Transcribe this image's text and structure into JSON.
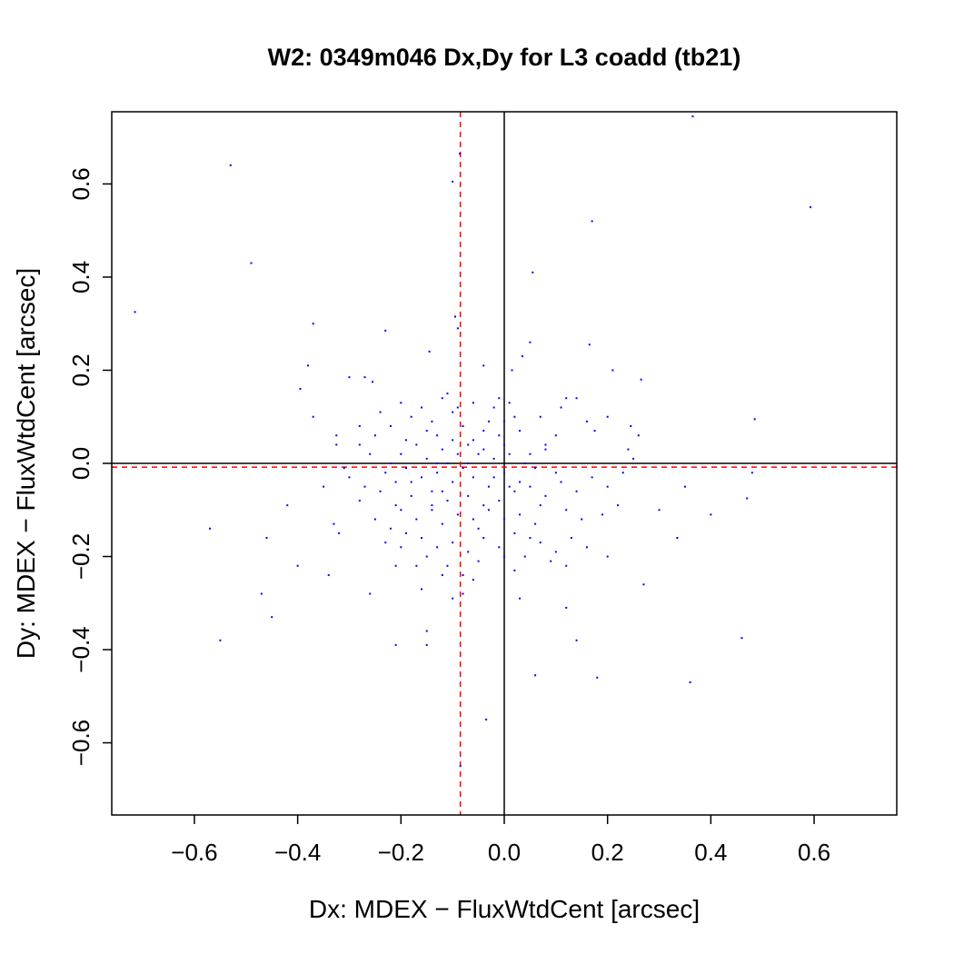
{
  "chart_data": {
    "type": "scatter",
    "title": "W2: 0349m046 Dx,Dy for L3 coadd (tb21)",
    "xlabel": "Dx: MDEX − FluxWtdCent [arcsec]",
    "ylabel": "Dy: MDEX − FluxWtdCent [arcsec]",
    "xlim": [
      -0.76,
      0.76
    ],
    "ylim": [
      -0.755,
      0.755
    ],
    "xticks": [
      -0.6,
      -0.4,
      -0.2,
      0.0,
      0.2,
      0.4,
      0.6
    ],
    "xtick_labels": [
      "−0.6",
      "−0.4",
      "−0.2",
      "0.0",
      "0.2",
      "0.4",
      "0.6"
    ],
    "yticks": [
      -0.6,
      -0.4,
      -0.2,
      0.0,
      0.2,
      0.4,
      0.6
    ],
    "ytick_labels": [
      "−0.6",
      "−0.4",
      "−0.2",
      "0.0",
      "0.2",
      "0.4",
      "0.6"
    ],
    "grid": false,
    "point_color": "#0000ff",
    "zero_line_color": "#000000",
    "median_line_color": "#ff0000",
    "median_x": -0.085,
    "median_y": -0.008,
    "points": [
      [
        0.365,
        0.745
      ],
      [
        -0.53,
        0.64
      ],
      [
        0.593,
        0.55
      ],
      [
        -0.1,
        0.605
      ],
      [
        -0.086,
        0.665
      ],
      [
        0.17,
        0.52
      ],
      [
        -0.49,
        0.43
      ],
      [
        0.055,
        0.41
      ],
      [
        -0.715,
        0.325
      ],
      [
        -0.095,
        0.315
      ],
      [
        -0.37,
        0.3
      ],
      [
        -0.09,
        0.29
      ],
      [
        -0.23,
        0.285
      ],
      [
        0.05,
        0.26
      ],
      [
        0.165,
        0.255
      ],
      [
        -0.145,
        0.24
      ],
      [
        0.035,
        0.23
      ],
      [
        -0.38,
        0.21
      ],
      [
        -0.04,
        0.21
      ],
      [
        0.21,
        0.2
      ],
      [
        0.015,
        0.2
      ],
      [
        -0.3,
        0.185
      ],
      [
        -0.27,
        0.185
      ],
      [
        0.265,
        0.18
      ],
      [
        -0.255,
        0.175
      ],
      [
        -0.395,
        0.16
      ],
      [
        0.12,
        0.14
      ],
      [
        0.14,
        0.14
      ],
      [
        -0.11,
        0.15
      ],
      [
        -0.02,
        0.12
      ],
      [
        -0.37,
        0.1
      ],
      [
        0.485,
        0.095
      ],
      [
        0.245,
        0.08
      ],
      [
        0.16,
        0.09
      ],
      [
        0.2,
        0.1
      ],
      [
        0.26,
        0.06
      ],
      [
        0.24,
        0.03
      ],
      [
        0.175,
        0.07
      ],
      [
        0.1,
        0.06
      ],
      [
        0.08,
        0.03
      ],
      [
        -0.325,
        0.06
      ],
      [
        -0.325,
        0.04
      ],
      [
        -0.28,
        0.04
      ],
      [
        -0.25,
        0.06
      ],
      [
        -0.22,
        0.08
      ],
      [
        -0.18,
        0.1
      ],
      [
        -0.16,
        0.12
      ],
      [
        -0.14,
        0.09
      ],
      [
        -0.13,
        0.06
      ],
      [
        -0.12,
        0.03
      ],
      [
        -0.1,
        0.11
      ],
      [
        -0.08,
        0.08
      ],
      [
        -0.06,
        0.05
      ],
      [
        -0.05,
        0.02
      ],
      [
        -0.03,
        0.09
      ],
      [
        -0.01,
        0.06
      ],
      [
        0.0,
        0.04
      ],
      [
        0.02,
        0.1
      ],
      [
        0.03,
        0.07
      ],
      [
        0.05,
        0.02
      ],
      [
        -0.2,
        0.02
      ],
      [
        -0.17,
        0.04
      ],
      [
        -0.15,
        0.01
      ],
      [
        -0.11,
        0.0
      ],
      [
        -0.09,
        0.02
      ],
      [
        -0.07,
        0.0
      ],
      [
        -0.04,
        0.03
      ],
      [
        -0.02,
        0.01
      ],
      [
        0.01,
        0.02
      ],
      [
        0.04,
        0.0
      ],
      [
        -0.23,
        -0.02
      ],
      [
        -0.19,
        -0.01
      ],
      [
        -0.16,
        -0.03
      ],
      [
        -0.13,
        -0.02
      ],
      [
        -0.1,
        -0.04
      ],
      [
        -0.08,
        -0.01
      ],
      [
        -0.06,
        -0.03
      ],
      [
        -0.03,
        -0.05
      ],
      [
        0.0,
        -0.02
      ],
      [
        0.03,
        -0.04
      ],
      [
        -0.3,
        -0.03
      ],
      [
        -0.27,
        -0.05
      ],
      [
        -0.24,
        -0.06
      ],
      [
        -0.21,
        -0.04
      ],
      [
        -0.18,
        -0.07
      ],
      [
        -0.14,
        -0.06
      ],
      [
        -0.11,
        -0.08
      ],
      [
        -0.07,
        -0.07
      ],
      [
        -0.04,
        -0.09
      ],
      [
        -0.01,
        -0.08
      ],
      [
        0.02,
        -0.06
      ],
      [
        0.05,
        -0.05
      ],
      [
        0.08,
        -0.07
      ],
      [
        0.11,
        -0.04
      ],
      [
        0.14,
        -0.06
      ],
      [
        0.17,
        -0.03
      ],
      [
        0.2,
        -0.05
      ],
      [
        0.23,
        -0.02
      ],
      [
        0.1,
        -0.02
      ],
      [
        0.06,
        -0.01
      ],
      [
        -0.2,
        -0.1
      ],
      [
        -0.17,
        -0.12
      ],
      [
        -0.14,
        -0.1
      ],
      [
        -0.12,
        -0.13
      ],
      [
        -0.09,
        -0.11
      ],
      [
        -0.06,
        -0.12
      ],
      [
        -0.03,
        -0.1
      ],
      [
        0.0,
        -0.12
      ],
      [
        0.03,
        -0.11
      ],
      [
        0.06,
        -0.13
      ],
      [
        -0.25,
        -0.12
      ],
      [
        -0.22,
        -0.14
      ],
      [
        -0.19,
        -0.15
      ],
      [
        -0.16,
        -0.16
      ],
      [
        -0.13,
        -0.18
      ],
      [
        -0.1,
        -0.17
      ],
      [
        -0.07,
        -0.19
      ],
      [
        -0.04,
        -0.16
      ],
      [
        -0.01,
        -0.18
      ],
      [
        0.02,
        -0.15
      ],
      [
        0.04,
        -0.2
      ],
      [
        0.07,
        -0.17
      ],
      [
        0.1,
        -0.19
      ],
      [
        0.13,
        -0.16
      ],
      [
        0.16,
        -0.18
      ],
      [
        -0.11,
        -0.22
      ],
      [
        -0.08,
        -0.24
      ],
      [
        -0.05,
        -0.21
      ],
      [
        0.02,
        -0.23
      ],
      [
        0.09,
        -0.21
      ],
      [
        0.2,
        -0.2
      ],
      [
        0.3,
        -0.1
      ],
      [
        0.35,
        -0.05
      ],
      [
        0.4,
        -0.11
      ],
      [
        0.335,
        -0.16
      ],
      [
        0.27,
        -0.26
      ],
      [
        0.47,
        -0.075
      ],
      [
        0.48,
        -0.02
      ],
      [
        -0.42,
        -0.09
      ],
      [
        -0.35,
        -0.05
      ],
      [
        -0.33,
        -0.13
      ],
      [
        -0.32,
        -0.15
      ],
      [
        -0.57,
        -0.14
      ],
      [
        -0.46,
        -0.16
      ],
      [
        -0.4,
        -0.22
      ],
      [
        -0.34,
        -0.24
      ],
      [
        -0.26,
        -0.28
      ],
      [
        -0.21,
        -0.22
      ],
      [
        -0.16,
        -0.27
      ],
      [
        -0.12,
        -0.24
      ],
      [
        -0.08,
        -0.28
      ],
      [
        -0.1,
        -0.29
      ],
      [
        -0.47,
        -0.28
      ],
      [
        -0.45,
        -0.33
      ],
      [
        -0.55,
        -0.38
      ],
      [
        -0.21,
        -0.39
      ],
      [
        -0.15,
        -0.36
      ],
      [
        -0.15,
        -0.39
      ],
      [
        0.12,
        -0.31
      ],
      [
        0.03,
        -0.29
      ],
      [
        0.14,
        -0.38
      ],
      [
        0.46,
        -0.375
      ],
      [
        0.06,
        -0.455
      ],
      [
        0.18,
        -0.46
      ],
      [
        0.36,
        -0.47
      ],
      [
        -0.035,
        -0.55
      ],
      [
        -0.085,
        -0.65
      ],
      [
        -0.12,
        0.14
      ],
      [
        -0.06,
        0.13
      ],
      [
        -0.2,
        0.13
      ],
      [
        -0.24,
        0.11
      ],
      [
        0.07,
        0.1
      ],
      [
        -0.28,
        0.08
      ],
      [
        -0.01,
        0.14
      ],
      [
        0.11,
        0.12
      ],
      [
        -0.15,
        0.07
      ],
      [
        -0.19,
        0.05
      ],
      [
        -0.1,
        0.05
      ],
      [
        0.0,
        0.09
      ],
      [
        -0.04,
        0.07
      ],
      [
        -0.26,
        0.02
      ],
      [
        -0.22,
        0.0
      ],
      [
        -0.12,
        -0.06
      ],
      [
        -0.18,
        -0.04
      ],
      [
        0.01,
        -0.05
      ],
      [
        0.07,
        -0.09
      ],
      [
        0.12,
        -0.1
      ],
      [
        0.15,
        -0.12
      ],
      [
        -0.28,
        -0.08
      ],
      [
        -0.21,
        -0.09
      ],
      [
        -0.05,
        -0.14
      ],
      [
        0.05,
        -0.16
      ],
      [
        -0.15,
        -0.2
      ],
      [
        0.0,
        -0.2
      ],
      [
        0.12,
        -0.22
      ],
      [
        -0.06,
        -0.25
      ],
      [
        0.19,
        -0.11
      ],
      [
        0.22,
        -0.09
      ],
      [
        -0.31,
        -0.01
      ],
      [
        0.25,
        0.01
      ],
      [
        -0.02,
        -0.03
      ],
      [
        -0.14,
        -0.09
      ],
      [
        0.08,
        0.04
      ],
      [
        -0.09,
        0.12
      ],
      [
        0.01,
        0.13
      ],
      [
        -0.17,
        -0.22
      ],
      [
        -0.2,
        -0.18
      ],
      [
        -0.23,
        -0.17
      ],
      [
        -0.13,
        0.0
      ],
      [
        -0.07,
        0.04
      ]
    ]
  }
}
